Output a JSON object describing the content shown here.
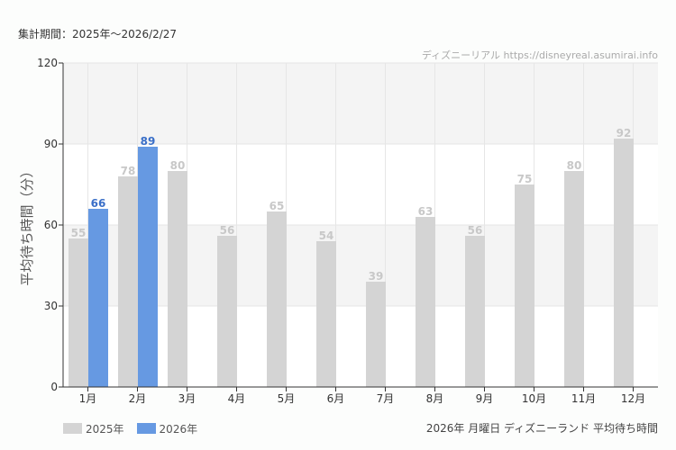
{
  "header": {
    "period": "集計期間：2025年～2026/2/27",
    "credit": "ディズニーリアル https://disneyreal.asumirai.info"
  },
  "chart_data": {
    "type": "bar",
    "title": "2026年 月曜日 ディズニーランド 平均待ち時間",
    "ylabel": "平均待ち時間（分）",
    "xlabel": "",
    "ylim": [
      0,
      120
    ],
    "yticks": [
      "0",
      "30",
      "60",
      "90",
      "120"
    ],
    "categories": [
      "1月",
      "2月",
      "3月",
      "4月",
      "5月",
      "6月",
      "7月",
      "8月",
      "9月",
      "10月",
      "11月",
      "12月"
    ],
    "series": [
      {
        "name": "2025年",
        "color": "#d4d4d4",
        "label_color": "#c8c8c8",
        "values": [
          55,
          78,
          80,
          56,
          65,
          54,
          39,
          63,
          56,
          75,
          80,
          92
        ]
      },
      {
        "name": "2026年",
        "color": "#6699e2",
        "label_color": "#3a6fc8",
        "values": [
          66,
          89,
          null,
          null,
          null,
          null,
          null,
          null,
          null,
          null,
          null,
          null
        ]
      }
    ],
    "legend": "bottom-left",
    "grid": true
  }
}
